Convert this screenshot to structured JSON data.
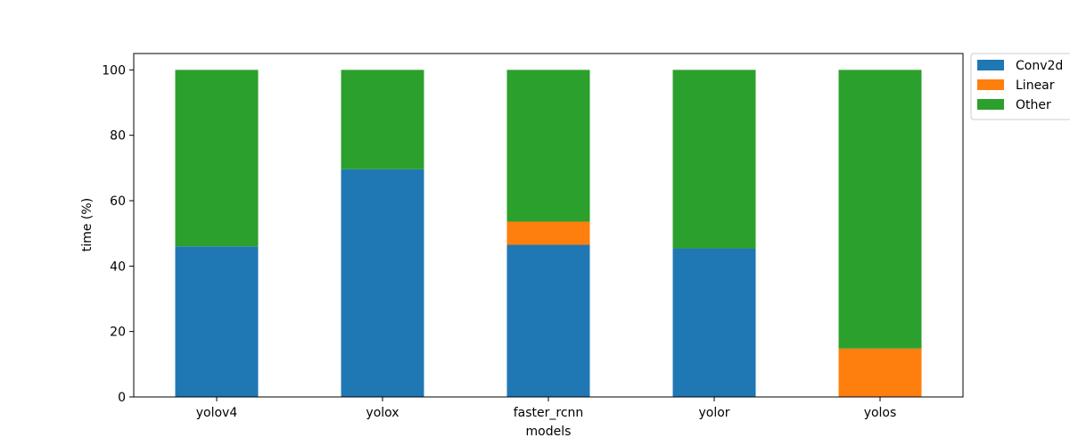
{
  "chart_data": {
    "type": "bar",
    "stacked": true,
    "categories": [
      "yolov4",
      "yolox",
      "faster_rcnn",
      "yolor",
      "yolos"
    ],
    "series": [
      {
        "name": "Conv2d",
        "color": "#1f77b4",
        "values": [
          46.0,
          69.6,
          46.5,
          45.4,
          0.0
        ]
      },
      {
        "name": "Linear",
        "color": "#ff7f0e",
        "values": [
          0.0,
          0.0,
          7.1,
          0.0,
          14.8
        ]
      },
      {
        "name": "Other",
        "color": "#2ca02c",
        "values": [
          54.0,
          30.4,
          46.4,
          54.6,
          85.2
        ]
      }
    ],
    "xlabel": "models",
    "ylabel": "time (%)",
    "ylim": [
      0,
      105
    ],
    "yticks": [
      0,
      20,
      40,
      60,
      80,
      100
    ],
    "grid": false,
    "legend_position": "outside-top-right"
  }
}
